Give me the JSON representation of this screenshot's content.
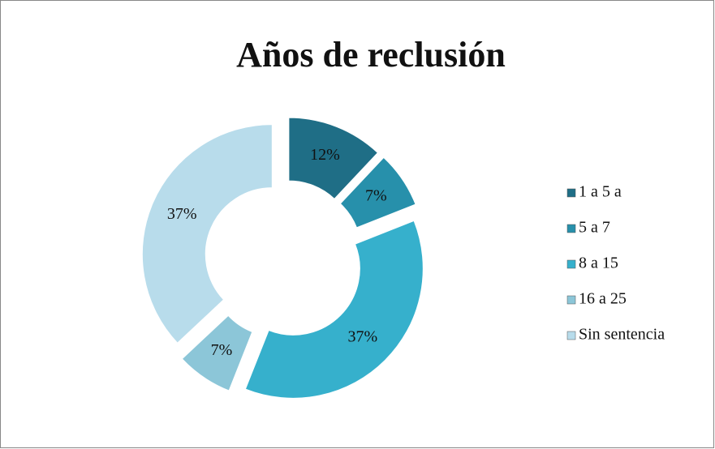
{
  "chart_data": {
    "type": "doughnut",
    "title": "Años de reclusión",
    "categories": [
      "1 a 5 a",
      "5 a 7",
      "8 a 15",
      "16 a 25",
      "Sin sentencia"
    ],
    "values": [
      12,
      7,
      37,
      7,
      37
    ],
    "value_labels": [
      "12%",
      "7%",
      "37%",
      "7%",
      "37%"
    ],
    "colors": [
      "#1f6e86",
      "#2790ab",
      "#36b0cc",
      "#8cc6d8",
      "#b8dceb"
    ],
    "legend": "right"
  }
}
